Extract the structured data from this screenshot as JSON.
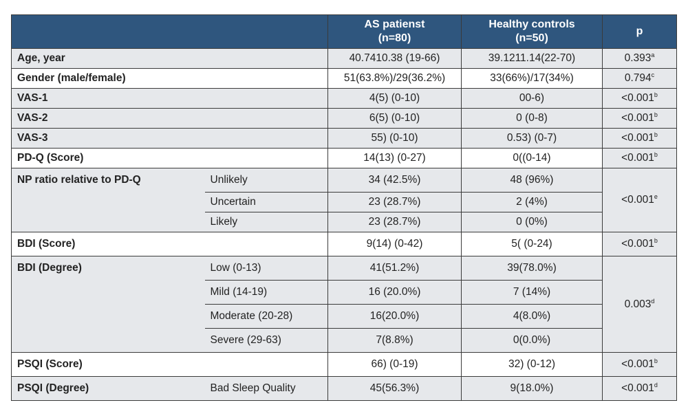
{
  "header": {
    "col_as": "AS patienst",
    "col_as_n": "(n=80)",
    "col_hc": "Healthy controls",
    "col_hc_n": "(n=50)",
    "col_p": "p"
  },
  "rows": [
    {
      "label": "Age, year",
      "sub": "",
      "as": "40.7410.38 (19-66)",
      "hc": "39.1211.14(22-70)",
      "p": "0.393",
      "p_sup": "a"
    },
    {
      "label": "Gender (male/female)",
      "sub": "",
      "as": "51(63.8%)/29(36.2%)",
      "hc": "33(66%)/17(34%)",
      "p": "0.794",
      "p_sup": "c"
    },
    {
      "label": "VAS-1",
      "sub": "",
      "as": "4(5) (0-10)",
      "hc": "00-6)",
      "p": "<0.001",
      "p_sup": "b"
    },
    {
      "label": "VAS-2",
      "sub": "",
      "as": "6(5) (0-10)",
      "hc": "0 (0-8)",
      "p": "<0.001",
      "p_sup": "b"
    },
    {
      "label": "VAS-3",
      "sub": "",
      "as": "55) (0-10)",
      "hc": "0.53) (0-7)",
      "p": "<0.001",
      "p_sup": "b"
    },
    {
      "label": "PD-Q (Score)",
      "sub": "",
      "as": "14(13) (0-27)",
      "hc": "0((0-14)",
      "p": "<0.001",
      "p_sup": "b"
    },
    {
      "label": "NP ratio relative to PD-Q",
      "sub": "Unlikely",
      "as": "34 (42.5%)",
      "hc": "48 (96%)",
      "p": "<0.001",
      "p_sup": "e"
    },
    {
      "label": "",
      "sub": "Uncertain",
      "as": "23 (28.7%)",
      "hc": "2 (4%)"
    },
    {
      "label": "",
      "sub": "Likely",
      "as": "23 (28.7%)",
      "hc": "0 (0%)"
    },
    {
      "label": "BDI (Score)",
      "sub": "",
      "as": "9(14) (0-42)",
      "hc": "5( (0-24)",
      "p": "<0.001",
      "p_sup": "b"
    },
    {
      "label": "BDI (Degree)",
      "sub": "Low (0-13)",
      "as": "41(51.2%)",
      "hc": "39(78.0%)",
      "p": "0.003",
      "p_sup": "d"
    },
    {
      "label": "",
      "sub": "Mild (14-19)",
      "as": "16 (20.0%)",
      "hc": "7 (14%)"
    },
    {
      "label": "",
      "sub": "Moderate (20-28)",
      "as": "16(20.0%)",
      "hc": "4(8.0%)"
    },
    {
      "label": "",
      "sub": "Severe (29-63)",
      "as": "7(8.8%)",
      "hc": "0(0.0%)"
    },
    {
      "label": "PSQI (Score)",
      "sub": "",
      "as": "66) (0-19)",
      "hc": "32) (0-12)",
      "p": "<0.001",
      "p_sup": "b"
    },
    {
      "label": "PSQI (Degree)",
      "sub": "Bad Sleep Quality",
      "as": "45(56.3%)",
      "hc": "9(18.0%)",
      "p": "<0.001",
      "p_sup": "d"
    }
  ]
}
